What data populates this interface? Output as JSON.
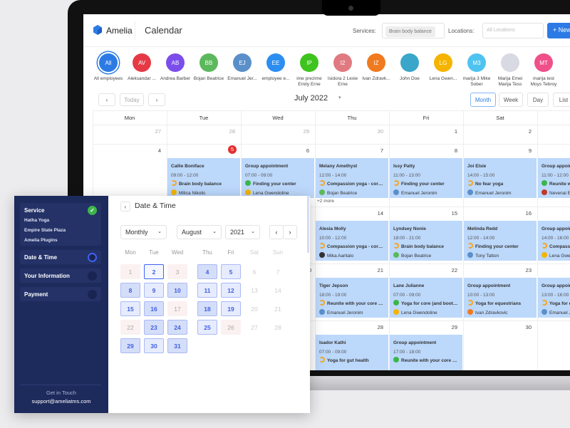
{
  "header": {
    "brand": "Amelia",
    "title": "Calendar",
    "services_label": "Services:",
    "services_chip": "Brain body balance",
    "locations_label": "Locations:",
    "locations_placeholder": "All Locations",
    "new_label": "+ New"
  },
  "employees": [
    {
      "initials": "All",
      "name": "All employees",
      "color": "#2c7be5"
    },
    {
      "initials": "AV",
      "name": "Aleksandar ...",
      "color": "#e63946"
    },
    {
      "initials": "AB",
      "name": "Andrea Barber",
      "color": "#7b4dea"
    },
    {
      "initials": "BB",
      "name": "Bojan Beatrice",
      "color": "#5cb85c"
    },
    {
      "initials": "EJ",
      "name": "Emanuel Jer...",
      "color": "#5b8fc9"
    },
    {
      "initials": "EE",
      "name": "employee e...",
      "color": "#2c8ef0"
    },
    {
      "initials": "IP",
      "name": "ime prezime Emily Erne",
      "color": "#3fc31f"
    },
    {
      "initials": "I2",
      "name": "Isidora 2 Lexie Erne",
      "color": "#e07a80"
    },
    {
      "initials": "IZ",
      "name": "Ivan Zdravk...",
      "color": "#f07a1f"
    },
    {
      "initials": "",
      "name": "John Doe",
      "color": "#3aa6c9"
    },
    {
      "initials": "LG",
      "name": "Lena Gwen...",
      "color": "#f5b400"
    },
    {
      "initials": "M3",
      "name": "marija 3 Mike Sober",
      "color": "#4fc3f0"
    },
    {
      "initials": "",
      "name": "Marija Emei Marija Tess",
      "color": "#d9d9e3"
    },
    {
      "initials": "MT",
      "name": "marija test Moys Tebroy",
      "color": "#f0508a"
    }
  ],
  "toolbar": {
    "prev": "‹",
    "today": "Today",
    "next": "›",
    "month_title": "July 2022",
    "views": [
      "Month",
      "Week",
      "Day",
      "List"
    ],
    "active_view": "Month"
  },
  "weekdays": [
    "Mon",
    "Tue",
    "Wed",
    "Thu",
    "Fri",
    "Sat",
    "Sun"
  ],
  "weeks": [
    [
      "27",
      "28",
      "29",
      "30",
      "1",
      "2",
      "3"
    ],
    [
      "4",
      "5",
      "6",
      "7",
      "8",
      "9",
      "10"
    ],
    [
      "11",
      "12",
      "13",
      "14",
      "15",
      "16",
      "17"
    ],
    [
      "18",
      "19",
      "20",
      "21",
      "22",
      "23",
      "24"
    ],
    [
      "25",
      "26",
      "27",
      "28",
      "29",
      "30",
      "31"
    ]
  ],
  "today": "5",
  "events": [
    {
      "week": 1,
      "day": 1,
      "name": "Callie Boniface",
      "time": "09:00 - 12:00",
      "service": "Brain body balance",
      "status": "pending",
      "employee": "Milica Nikolic",
      "emp_color": "#f5b400"
    },
    {
      "week": 1,
      "day": 2,
      "name": "Group appointment",
      "time": "07:00 - 09:00",
      "service": "Finding your center",
      "status": "approved",
      "employee": "Lena Gwendoline",
      "emp_color": "#f5b400"
    },
    {
      "week": 1,
      "day": 3,
      "name": "Melany Amethyst",
      "time": "12:00 - 14:00",
      "service": "Compassion yoga - core st...",
      "status": "pending",
      "employee": "Bojan Beatrice",
      "emp_color": "#5cb85c"
    },
    {
      "week": 1,
      "day": 4,
      "name": "Issy Patty",
      "time": "11:00 - 13:00",
      "service": "Finding your center",
      "status": "pending",
      "employee": "Emanuel Jeronim",
      "emp_color": "#5b8fc9"
    },
    {
      "week": 1,
      "day": 5,
      "name": "Joi Elsie",
      "time": "14:00 - 15:00",
      "service": "No fear yoga",
      "status": "pending",
      "employee": "Emanuel Jeronim",
      "emp_color": "#5b8fc9"
    },
    {
      "week": 1,
      "day": 6,
      "name": "Group appointment",
      "time": "11:00 - 12:00",
      "service": "Reunite with your core",
      "status": "approved",
      "employee": "Nevenai Emi",
      "emp_color": "#c0392b"
    },
    {
      "week": 2,
      "day": 3,
      "name": "Alesia Molly",
      "time": "10:00 - 12:00",
      "service": "Compassion yoga - core st...",
      "status": "pending",
      "employee": "Mika Aaritalo",
      "emp_color": "#333"
    },
    {
      "week": 2,
      "day": 4,
      "name": "Lyndsey Nonie",
      "time": "18:00 - 21:00",
      "service": "Brain body balance",
      "status": "pending",
      "employee": "Bojan Beatrice",
      "emp_color": "#5cb85c"
    },
    {
      "week": 2,
      "day": 5,
      "name": "Melinda Redd",
      "time": "12:00 - 14:00",
      "service": "Finding your center",
      "status": "pending",
      "employee": "Tony Tatton",
      "emp_color": "#5b8fc9"
    },
    {
      "week": 2,
      "day": 6,
      "name": "Group appointment",
      "time": "14:00 - 16:00",
      "service": "Compassion yoga",
      "status": "pending",
      "employee": "Lena Gwendoline",
      "emp_color": "#f5b400"
    },
    {
      "week": 3,
      "day": 3,
      "name": "Tiger Jepson",
      "time": "18:00 - 19:00",
      "service": "Reunite with your core cen...",
      "status": "pending",
      "employee": "Emanuel Jeronim",
      "emp_color": "#5b8fc9"
    },
    {
      "week": 3,
      "day": 4,
      "name": "Lane Julianne",
      "time": "07:00 - 09:00",
      "service": "Yoga for core (and booty!)",
      "status": "approved",
      "employee": "Lena Gwendoline",
      "emp_color": "#f5b400"
    },
    {
      "week": 3,
      "day": 5,
      "name": "Group appointment",
      "time": "10:00 - 13:00",
      "service": "Yoga for equestrians",
      "status": "pending",
      "employee": "Ivan Zdravkovic",
      "emp_color": "#f07a1f"
    },
    {
      "week": 3,
      "day": 6,
      "name": "Group appointment",
      "time": "13:00 - 16:00",
      "service": "Yoga for equestrians",
      "status": "pending",
      "employee": "Emanuel Jeronim",
      "emp_color": "#5b8fc9"
    },
    {
      "week": 4,
      "day": 3,
      "name": "Isador Kathi",
      "time": "07:00 - 09:00",
      "service": "Yoga for gut health",
      "status": "pending",
      "employee": "",
      "emp_color": "#5b8fc9"
    },
    {
      "week": 4,
      "day": 4,
      "name": "Group appointment",
      "time": "17:00 - 18:00",
      "service": "Reunite with your core cen...",
      "status": "approved",
      "employee": "",
      "emp_color": "#5b8fc9"
    }
  ],
  "more_link": "+2 more",
  "booking": {
    "steps": [
      {
        "label": "Service",
        "state": "done",
        "details": [
          "Hatha Yoga",
          "Empire State Plaza",
          "Amelia Plugins"
        ]
      },
      {
        "label": "Date & Time",
        "state": "active"
      },
      {
        "label": "Your Information",
        "state": "pending"
      },
      {
        "label": "Payment",
        "state": "pending"
      }
    ],
    "footer_title": "Get in Touch",
    "footer_email": "support@ameliatms.com",
    "title": "Date & Time",
    "back": "‹",
    "view_select": "Monthly",
    "month_select": "August",
    "year_select": "2021",
    "weekdays": [
      "Mon",
      "Tue",
      "Wed",
      "Thu",
      "Fri",
      "Sat",
      "Sun"
    ],
    "days": [
      {
        "d": "1",
        "s": "un"
      },
      {
        "d": "2",
        "s": "sel"
      },
      {
        "d": "3",
        "s": "un"
      },
      {
        "d": "4",
        "s": "dk"
      },
      {
        "d": "5",
        "s": "av"
      },
      {
        "d": "6",
        "s": "we"
      },
      {
        "d": "7",
        "s": "we"
      },
      {
        "d": "8",
        "s": "dk"
      },
      {
        "d": "9",
        "s": "av"
      },
      {
        "d": "10",
        "s": "dk"
      },
      {
        "d": "11",
        "s": "av"
      },
      {
        "d": "12",
        "s": "av"
      },
      {
        "d": "13",
        "s": "we"
      },
      {
        "d": "14",
        "s": "we"
      },
      {
        "d": "15",
        "s": "av"
      },
      {
        "d": "16",
        "s": "dk"
      },
      {
        "d": "17",
        "s": "un"
      },
      {
        "d": "18",
        "s": "dk"
      },
      {
        "d": "19",
        "s": "av"
      },
      {
        "d": "20",
        "s": "we"
      },
      {
        "d": "21",
        "s": "we"
      },
      {
        "d": "22",
        "s": "un"
      },
      {
        "d": "23",
        "s": "dk"
      },
      {
        "d": "24",
        "s": "dk"
      },
      {
        "d": "25",
        "s": "av"
      },
      {
        "d": "26",
        "s": "un"
      },
      {
        "d": "27",
        "s": "we"
      },
      {
        "d": "28",
        "s": "we"
      },
      {
        "d": "29",
        "s": "dk"
      },
      {
        "d": "30",
        "s": "av"
      },
      {
        "d": "31",
        "s": "dk"
      }
    ]
  }
}
